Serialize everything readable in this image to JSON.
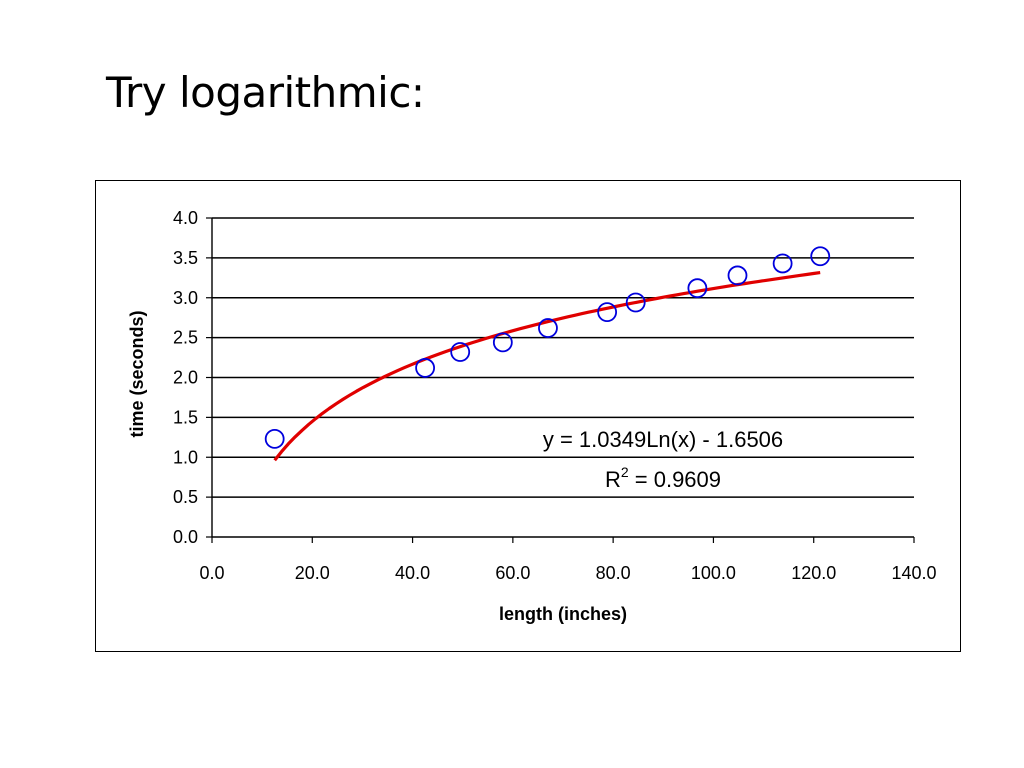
{
  "slide": {
    "title": "Try logarithmic:"
  },
  "chart_data": {
    "type": "scatter",
    "xlabel": "length (inches)",
    "ylabel": "time (seconds)",
    "xlim": [
      0,
      140
    ],
    "ylim": [
      0,
      4
    ],
    "x_ticks": [
      "0.0",
      "20.0",
      "40.0",
      "60.0",
      "80.0",
      "100.0",
      "120.0",
      "140.0"
    ],
    "y_ticks": [
      "0.0",
      "0.5",
      "1.0",
      "1.5",
      "2.0",
      "2.5",
      "3.0",
      "3.5",
      "4.0"
    ],
    "grid": "horizontal",
    "series": [
      {
        "marker": "open-circle",
        "color": "#0000dd",
        "points": [
          {
            "x": 12.5,
            "y": 1.23
          },
          {
            "x": 42.5,
            "y": 2.12
          },
          {
            "x": 49.5,
            "y": 2.32
          },
          {
            "x": 58.0,
            "y": 2.44
          },
          {
            "x": 67.0,
            "y": 2.62
          },
          {
            "x": 78.8,
            "y": 2.82
          },
          {
            "x": 84.5,
            "y": 2.94
          },
          {
            "x": 96.8,
            "y": 3.12
          },
          {
            "x": 104.8,
            "y": 3.28
          },
          {
            "x": 113.8,
            "y": 3.43
          },
          {
            "x": 121.3,
            "y": 3.52
          }
        ]
      }
    ],
    "trendline": {
      "type": "logarithmic",
      "color": "#e00000",
      "a": 1.0349,
      "b": -1.6506,
      "x_range": [
        12.5,
        121.3
      ]
    },
    "annotation": {
      "equation": "y = 1.0349Ln(x) - 1.6506",
      "r2_prefix": "R",
      "r2_superscript": "2",
      "r2_value": " = 0.9609"
    }
  }
}
